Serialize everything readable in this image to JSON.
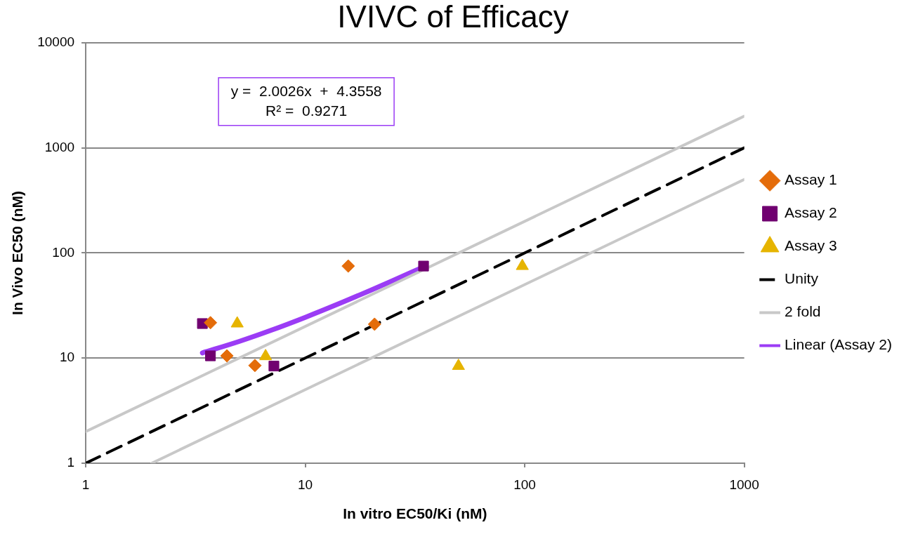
{
  "chart_data": {
    "type": "scatter",
    "title": "IVIVC of Efficacy",
    "xlabel": "In vitro EC50/Ki (nM)",
    "ylabel": "In Vivo EC50 (nM)",
    "log": "xy",
    "xlim": [
      1,
      1000
    ],
    "ylim": [
      1,
      10000
    ],
    "xticks": [
      1,
      10,
      100,
      1000
    ],
    "yticks": [
      1,
      10,
      100,
      1000,
      10000
    ],
    "grid": "y",
    "legend": "right",
    "annotations": [
      "y =  2.0026x  +  4.3558",
      "R² =  0.9271"
    ],
    "series": [
      {
        "name": "Assay 1",
        "type": "scatter",
        "marker": "diamond",
        "color": "#e46c0a",
        "x": [
          3.7,
          4.4,
          5.9,
          15.7,
          20.7
        ],
        "values": [
          21.7,
          10.5,
          8.5,
          75,
          21
        ]
      },
      {
        "name": "Assay 2",
        "type": "scatter",
        "marker": "square",
        "color": "#700070",
        "x": [
          3.4,
          3.7,
          7.2,
          34.6
        ],
        "values": [
          21.3,
          10.5,
          8.4,
          75
        ]
      },
      {
        "name": "Assay 3",
        "type": "scatter",
        "marker": "triangle",
        "color": "#e6b400",
        "x": [
          4.9,
          6.6,
          49.9,
          97.5
        ],
        "values": [
          21.3,
          10.4,
          8.4,
          75
        ]
      },
      {
        "name": "Unity",
        "type": "line",
        "line_style": "dashed",
        "color": "#000000",
        "x": [
          1,
          1000
        ],
        "values": [
          1,
          1000
        ]
      },
      {
        "name": "2 fold",
        "type": "line",
        "line_style": "solid",
        "color": "#c8c8c8",
        "x": [
          1,
          1000
        ],
        "values": [
          2,
          2000
        ]
      },
      {
        "type": "line",
        "line_style": "solid",
        "color": "#c8c8c8",
        "x": [
          2,
          1000
        ],
        "values": [
          1,
          500
        ]
      },
      {
        "name": "Linear (Assay 2)",
        "type": "line",
        "line_style": "solid",
        "color": "#9b3cf5",
        "x": [
          3.4,
          5,
          7,
          10,
          15,
          20,
          25,
          34.6
        ],
        "values": [
          11.2,
          14.4,
          18.4,
          24.4,
          34.4,
          44.4,
          54.4,
          73.6
        ]
      }
    ]
  }
}
